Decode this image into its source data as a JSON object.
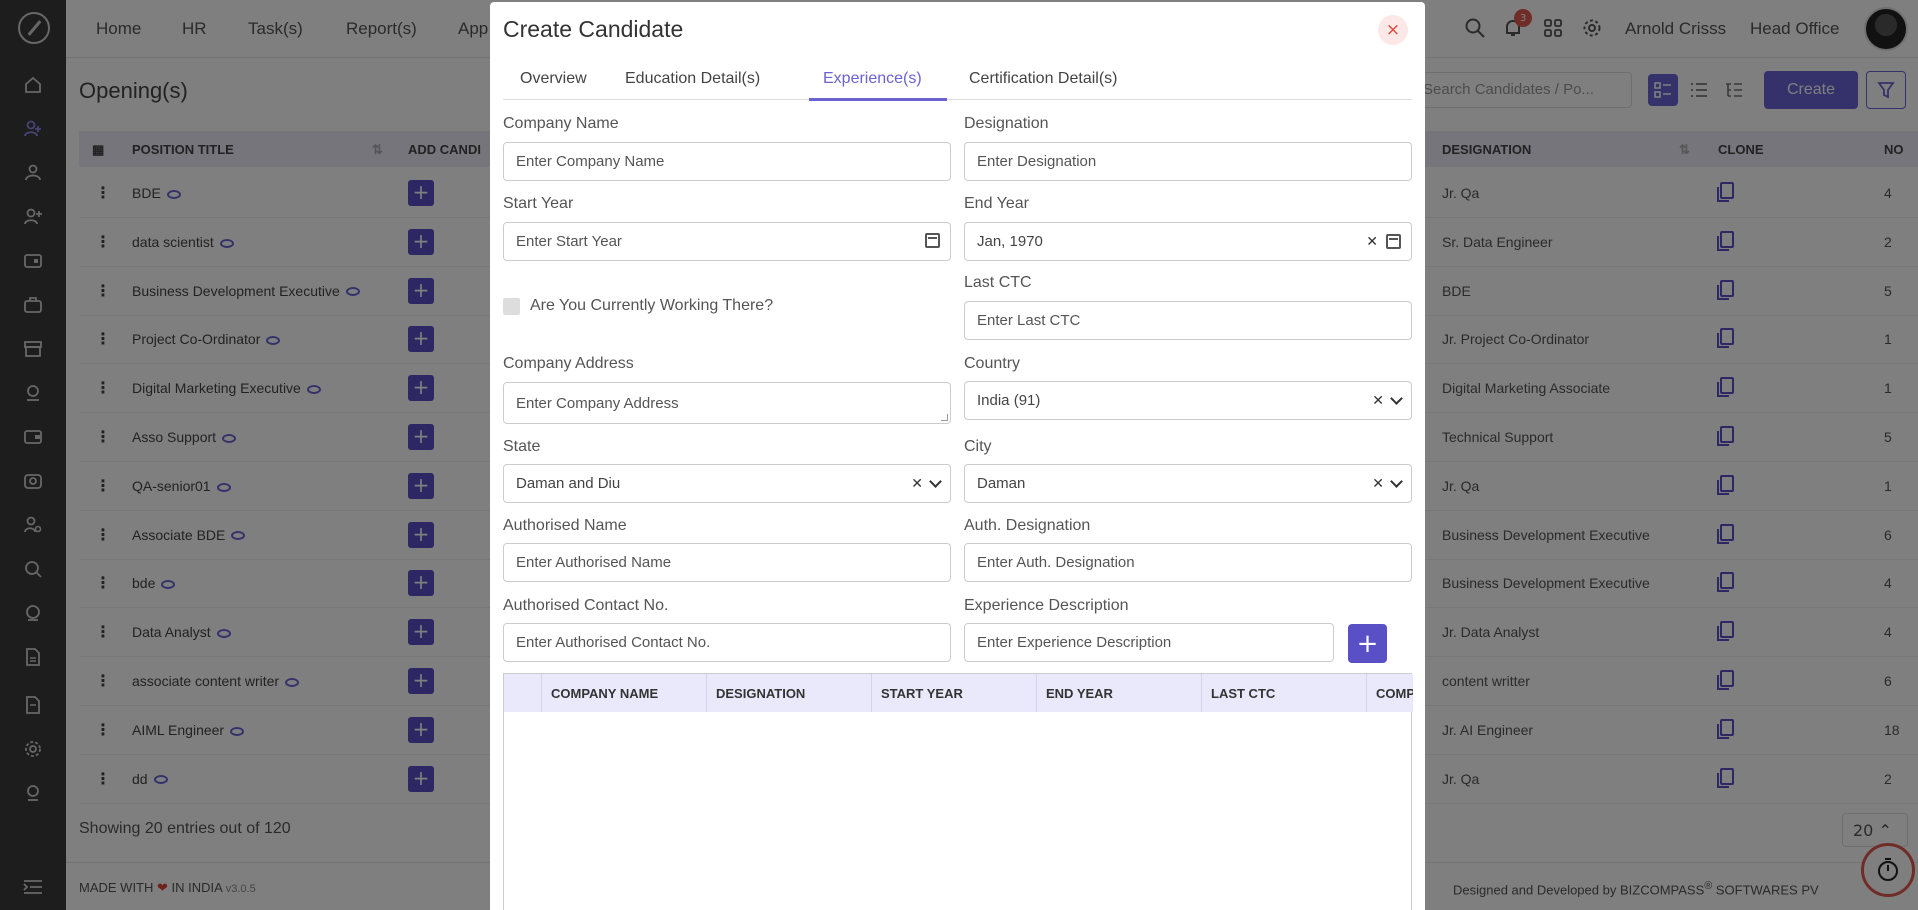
{
  "nav": {
    "items": [
      "Home",
      "HR",
      "Task(s)",
      "Report(s)",
      "App"
    ],
    "user_name": "Arnold Crisss",
    "office": "Head Office",
    "notification_count": "3"
  },
  "page": {
    "title": "Opening(s)",
    "search_placeholder": "Search Candidates / Po...",
    "create_label": "Create",
    "columns": [
      "POSITION TITLE",
      "ADD CANDI",
      "DESIGNATION",
      "CLONE",
      "NO"
    ],
    "rows": [
      {
        "title": "BDE",
        "designation": "Jr. Qa",
        "no": "4"
      },
      {
        "title": "data scientist",
        "designation": "Sr. Data Engineer",
        "no": "2"
      },
      {
        "title": "Business Development Executive",
        "designation": "BDE",
        "no": "5"
      },
      {
        "title": "Project Co-Ordinator",
        "designation": "Jr. Project Co-Ordinator",
        "no": "1"
      },
      {
        "title": "Digital Marketing Executive",
        "designation": "Digital Marketing Associate",
        "no": "1"
      },
      {
        "title": "Asso Support",
        "designation": "Technical Support",
        "no": "5"
      },
      {
        "title": "QA-senior01",
        "designation": "Jr. Qa",
        "no": "1"
      },
      {
        "title": "Associate BDE",
        "designation": "Business Development Executive",
        "no": "6"
      },
      {
        "title": "bde",
        "designation": "Business Development Executive",
        "no": "4"
      },
      {
        "title": "Data Analyst",
        "designation": "Jr. Data Analyst",
        "no": "4"
      },
      {
        "title": "associate content writer",
        "designation": "content writter",
        "no": "6"
      },
      {
        "title": "AIML Engineer",
        "designation": "Jr. AI Engineer",
        "no": "18"
      },
      {
        "title": "dd",
        "designation": "Jr. Qa",
        "no": "2"
      }
    ],
    "showing": "Showing 20 entries out of 120",
    "page_size": "20"
  },
  "footer": {
    "made_prefix": "MADE WITH",
    "made_suffix": "IN INDIA",
    "version": "v3.0.5",
    "designed_prefix": "Designed and Developed by",
    "designed_brand": "BIZCOMPASS",
    "designed_reg": "®",
    "designed_suffix": "SOFTWARES PV"
  },
  "modal": {
    "title": "Create Candidate",
    "close_label": "×",
    "tabs": [
      "Overview",
      "Education Detail(s)",
      "Experience(s)",
      "Certification Detail(s)"
    ],
    "active_tab": "Experience(s)",
    "fields": {
      "company_name": {
        "label": "Company Name",
        "placeholder": "Enter Company Name"
      },
      "designation": {
        "label": "Designation",
        "placeholder": "Enter Designation"
      },
      "start_year": {
        "label": "Start Year",
        "placeholder": "Enter Start Year"
      },
      "end_year": {
        "label": "End Year",
        "value": "Jan, 1970"
      },
      "currently_working": {
        "label": "Are You Currently Working There?",
        "checked": false
      },
      "last_ctc": {
        "label": "Last CTC",
        "placeholder": "Enter Last CTC"
      },
      "company_address": {
        "label": "Company Address",
        "placeholder": "Enter Company Address"
      },
      "country": {
        "label": "Country",
        "value": "India (91)"
      },
      "state": {
        "label": "State",
        "value": "Daman and Diu"
      },
      "city": {
        "label": "City",
        "value": "Daman"
      },
      "authorised_name": {
        "label": "Authorised Name",
        "placeholder": "Enter Authorised Name"
      },
      "auth_designation": {
        "label": "Auth. Designation",
        "placeholder": "Enter Auth. Designation"
      },
      "authorised_contact": {
        "label": "Authorised Contact No.",
        "placeholder": "Enter Authorised Contact No."
      },
      "experience_description": {
        "label": "Experience Description",
        "placeholder": "Enter Experience Description"
      }
    },
    "add_label": "+",
    "table_columns": [
      "COMPANY NAME",
      "DESIGNATION",
      "START YEAR",
      "END YEAR",
      "LAST CTC",
      "COMP"
    ]
  },
  "colors": {
    "accent": "#6b62d4",
    "accent_dark": "#5a50c6",
    "close_red": "#e0443a",
    "sidebar_bg": "#3b3b3b"
  }
}
